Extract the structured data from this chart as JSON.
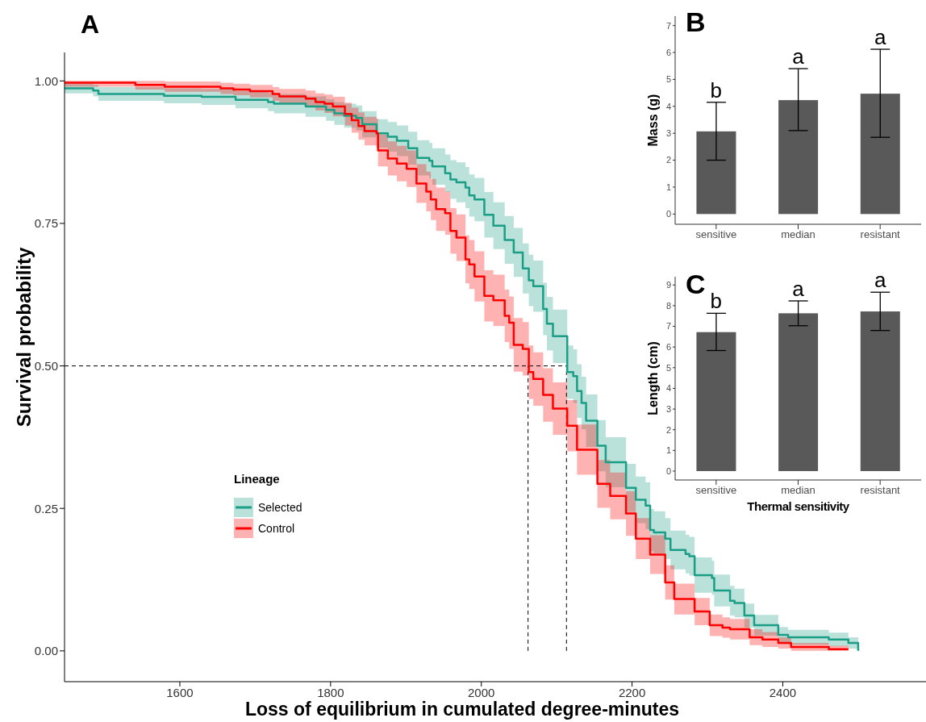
{
  "chart_data": [
    {
      "type": "step",
      "title": "A",
      "xlabel": "Loss of equilibrium in cumulated degree-minutes",
      "ylabel": "Survival probability",
      "legend_title": "Lineage",
      "legend": "left",
      "xlim": [
        1447,
        2590
      ],
      "xticks": [
        1600,
        1800,
        2000,
        2200,
        2400
      ],
      "ylim": [
        -0.054,
        1.05
      ],
      "yticks": [
        {
          "value": 0,
          "label": "0.00"
        },
        {
          "value": 0.25,
          "label": "0.25"
        },
        {
          "value": 0.5,
          "label": "0.50"
        },
        {
          "value": 0.75,
          "label": "0.75"
        },
        {
          "value": 1,
          "label": "1.00"
        }
      ],
      "ref_lines": [
        {
          "axis": "y",
          "value": 0.5,
          "line_style": "dashed"
        },
        {
          "axis": "x",
          "value": 2062,
          "line_style": "dashed"
        },
        {
          "axis": "x",
          "value": 2113,
          "line_style": "dashed"
        }
      ],
      "series": [
        {
          "name": "Selected",
          "color": "#1a9e86",
          "x": [
            1447,
            1485,
            1492,
            1579,
            1629,
            1674,
            1717,
            1725,
            1767,
            1794,
            1805,
            1818,
            1834,
            1842,
            1861,
            1876,
            1888,
            1903,
            1915,
            1931,
            1935,
            1952,
            1959,
            1967,
            1979,
            1984,
            1991,
            2004,
            2016,
            2031,
            2043,
            2055,
            2063,
            2069,
            2082,
            2087,
            2095,
            2114,
            2122,
            2127,
            2133,
            2139,
            2154,
            2165,
            2192,
            2205,
            2218,
            2224,
            2229,
            2244,
            2251,
            2271,
            2276,
            2283,
            2306,
            2309,
            2330,
            2336,
            2349,
            2362,
            2394,
            2407,
            2461,
            2487,
            2500
          ],
          "values": [
            0.987,
            0.983,
            0.977,
            0.974,
            0.972,
            0.967,
            0.963,
            0.96,
            0.955,
            0.949,
            0.943,
            0.939,
            0.935,
            0.924,
            0.908,
            0.902,
            0.895,
            0.882,
            0.865,
            0.86,
            0.85,
            0.838,
            0.827,
            0.822,
            0.813,
            0.799,
            0.792,
            0.765,
            0.746,
            0.721,
            0.699,
            0.671,
            0.65,
            0.64,
            0.6,
            0.574,
            0.552,
            0.489,
            0.482,
            0.456,
            0.435,
            0.404,
            0.36,
            0.331,
            0.286,
            0.265,
            0.255,
            0.212,
            0.208,
            0.197,
            0.177,
            0.17,
            0.166,
            0.133,
            0.128,
            0.106,
            0.088,
            0.084,
            0.062,
            0.045,
            0.028,
            0.024,
            0.02,
            0.014,
            0
          ],
          "lower": [
            0.978,
            0.973,
            0.965,
            0.961,
            0.958,
            0.952,
            0.947,
            0.943,
            0.937,
            0.93,
            0.923,
            0.918,
            0.913,
            0.901,
            0.883,
            0.876,
            0.868,
            0.853,
            0.834,
            0.829,
            0.818,
            0.805,
            0.793,
            0.787,
            0.777,
            0.762,
            0.754,
            0.725,
            0.705,
            0.679,
            0.656,
            0.627,
            0.605,
            0.595,
            0.554,
            0.527,
            0.505,
            0.442,
            0.435,
            0.409,
            0.389,
            0.358,
            0.315,
            0.287,
            0.244,
            0.224,
            0.214,
            0.175,
            0.171,
            0.161,
            0.143,
            0.136,
            0.132,
            0.102,
            0.098,
            0.078,
            0.062,
            0.059,
            0.041,
            0.027,
            0.014,
            0.011,
            0.008,
            0.004,
            0
          ],
          "upper": [
            0.996,
            0.993,
            0.989,
            0.987,
            0.986,
            0.982,
            0.979,
            0.977,
            0.973,
            0.968,
            0.963,
            0.96,
            0.957,
            0.947,
            0.933,
            0.928,
            0.922,
            0.911,
            0.896,
            0.891,
            0.882,
            0.871,
            0.861,
            0.857,
            0.849,
            0.836,
            0.83,
            0.805,
            0.787,
            0.763,
            0.742,
            0.715,
            0.695,
            0.685,
            0.646,
            0.621,
            0.599,
            0.536,
            0.529,
            0.503,
            0.481,
            0.45,
            0.405,
            0.375,
            0.328,
            0.306,
            0.296,
            0.249,
            0.245,
            0.233,
            0.211,
            0.204,
            0.2,
            0.164,
            0.158,
            0.134,
            0.114,
            0.109,
            0.083,
            0.063,
            0.042,
            0.037,
            0.032,
            0.024,
            0
          ]
        },
        {
          "name": "Control",
          "color": "#ff0000",
          "x": [
            1447,
            1541,
            1580,
            1654,
            1671,
            1693,
            1723,
            1732,
            1767,
            1780,
            1792,
            1803,
            1819,
            1828,
            1837,
            1845,
            1861,
            1863,
            1876,
            1888,
            1901,
            1914,
            1927,
            1933,
            1940,
            1952,
            1959,
            1967,
            1979,
            1984,
            1991,
            2004,
            2016,
            2031,
            2037,
            2043,
            2055,
            2063,
            2069,
            2082,
            2095,
            2114,
            2127,
            2154,
            2171,
            2192,
            2205,
            2224,
            2244,
            2256,
            2283,
            2303,
            2320,
            2330,
            2356,
            2373,
            2394,
            2411,
            2461,
            2487
          ],
          "values": [
            0.997,
            0.993,
            0.99,
            0.987,
            0.985,
            0.982,
            0.977,
            0.973,
            0.969,
            0.963,
            0.96,
            0.955,
            0.942,
            0.931,
            0.921,
            0.912,
            0.908,
            0.878,
            0.864,
            0.855,
            0.846,
            0.82,
            0.806,
            0.792,
            0.775,
            0.768,
            0.737,
            0.725,
            0.687,
            0.678,
            0.657,
            0.623,
            0.615,
            0.588,
            0.576,
            0.537,
            0.53,
            0.489,
            0.477,
            0.449,
            0.425,
            0.395,
            0.353,
            0.293,
            0.272,
            0.241,
            0.197,
            0.169,
            0.12,
            0.091,
            0.069,
            0.045,
            0.041,
            0.038,
            0.024,
            0.02,
            0.014,
            0.007,
            0.003,
            0.003
          ],
          "lower": [
            0.99,
            0.985,
            0.981,
            0.977,
            0.975,
            0.971,
            0.965,
            0.96,
            0.955,
            0.948,
            0.944,
            0.938,
            0.922,
            0.909,
            0.897,
            0.887,
            0.882,
            0.85,
            0.834,
            0.824,
            0.814,
            0.786,
            0.771,
            0.756,
            0.737,
            0.73,
            0.697,
            0.684,
            0.645,
            0.635,
            0.613,
            0.578,
            0.57,
            0.542,
            0.53,
            0.49,
            0.483,
            0.442,
            0.43,
            0.402,
            0.379,
            0.35,
            0.309,
            0.251,
            0.231,
            0.202,
            0.161,
            0.135,
            0.09,
            0.064,
            0.045,
            0.026,
            0.023,
            0.02,
            0.01,
            0.007,
            0.004,
            0,
            0,
            0
          ],
          "upper": [
            1,
            1,
            0.999,
            0.997,
            0.995,
            0.993,
            0.989,
            0.986,
            0.983,
            0.978,
            0.976,
            0.972,
            0.962,
            0.953,
            0.945,
            0.937,
            0.934,
            0.906,
            0.894,
            0.886,
            0.878,
            0.854,
            0.841,
            0.828,
            0.813,
            0.806,
            0.777,
            0.766,
            0.729,
            0.721,
            0.701,
            0.668,
            0.66,
            0.634,
            0.622,
            0.584,
            0.577,
            0.536,
            0.524,
            0.496,
            0.471,
            0.44,
            0.397,
            0.335,
            0.313,
            0.28,
            0.233,
            0.203,
            0.15,
            0.118,
            0.093,
            0.064,
            0.059,
            0.056,
            0.038,
            0.033,
            0.024,
            0.014,
            0.009,
            0.009
          ]
        }
      ]
    },
    {
      "type": "bar",
      "title": "B",
      "ylabel": "Mass (g)",
      "categories": [
        "sensitive",
        "median",
        "resistant"
      ],
      "values": [
        3.07,
        4.23,
        4.47
      ],
      "errors": [
        [
          2.0,
          4.15
        ],
        [
          3.1,
          5.4
        ],
        [
          2.85,
          6.12
        ]
      ],
      "color": "#595959",
      "ylim": [
        -0.38,
        7.35
      ],
      "yticks": [
        0,
        1,
        2,
        3,
        4,
        5,
        6,
        7
      ],
      "annotations": [
        {
          "text": "b",
          "x": "sensitive",
          "y": 4.15
        },
        {
          "text": "a",
          "x": "median",
          "y": 5.4
        },
        {
          "text": "a",
          "x": "resistant",
          "y": 6.12
        }
      ]
    },
    {
      "type": "bar",
      "title": "C",
      "xlabel": "Thermal sensitivity",
      "ylabel": "Length (cm)",
      "categories": [
        "sensitive",
        "median",
        "resistant"
      ],
      "values": [
        6.72,
        7.63,
        7.72
      ],
      "errors": [
        [
          5.83,
          7.63
        ],
        [
          7.03,
          8.23
        ],
        [
          6.8,
          8.65
        ]
      ],
      "color": "#595959",
      "ylim": [
        -0.43,
        9.4
      ],
      "yticks": [
        0,
        1,
        2,
        3,
        4,
        5,
        6,
        7,
        8,
        9
      ],
      "annotations": [
        {
          "text": "b",
          "x": "sensitive",
          "y": 7.63
        },
        {
          "text": "a",
          "x": "median",
          "y": 8.23
        },
        {
          "text": "a",
          "x": "resistant",
          "y": 8.65
        }
      ]
    }
  ]
}
